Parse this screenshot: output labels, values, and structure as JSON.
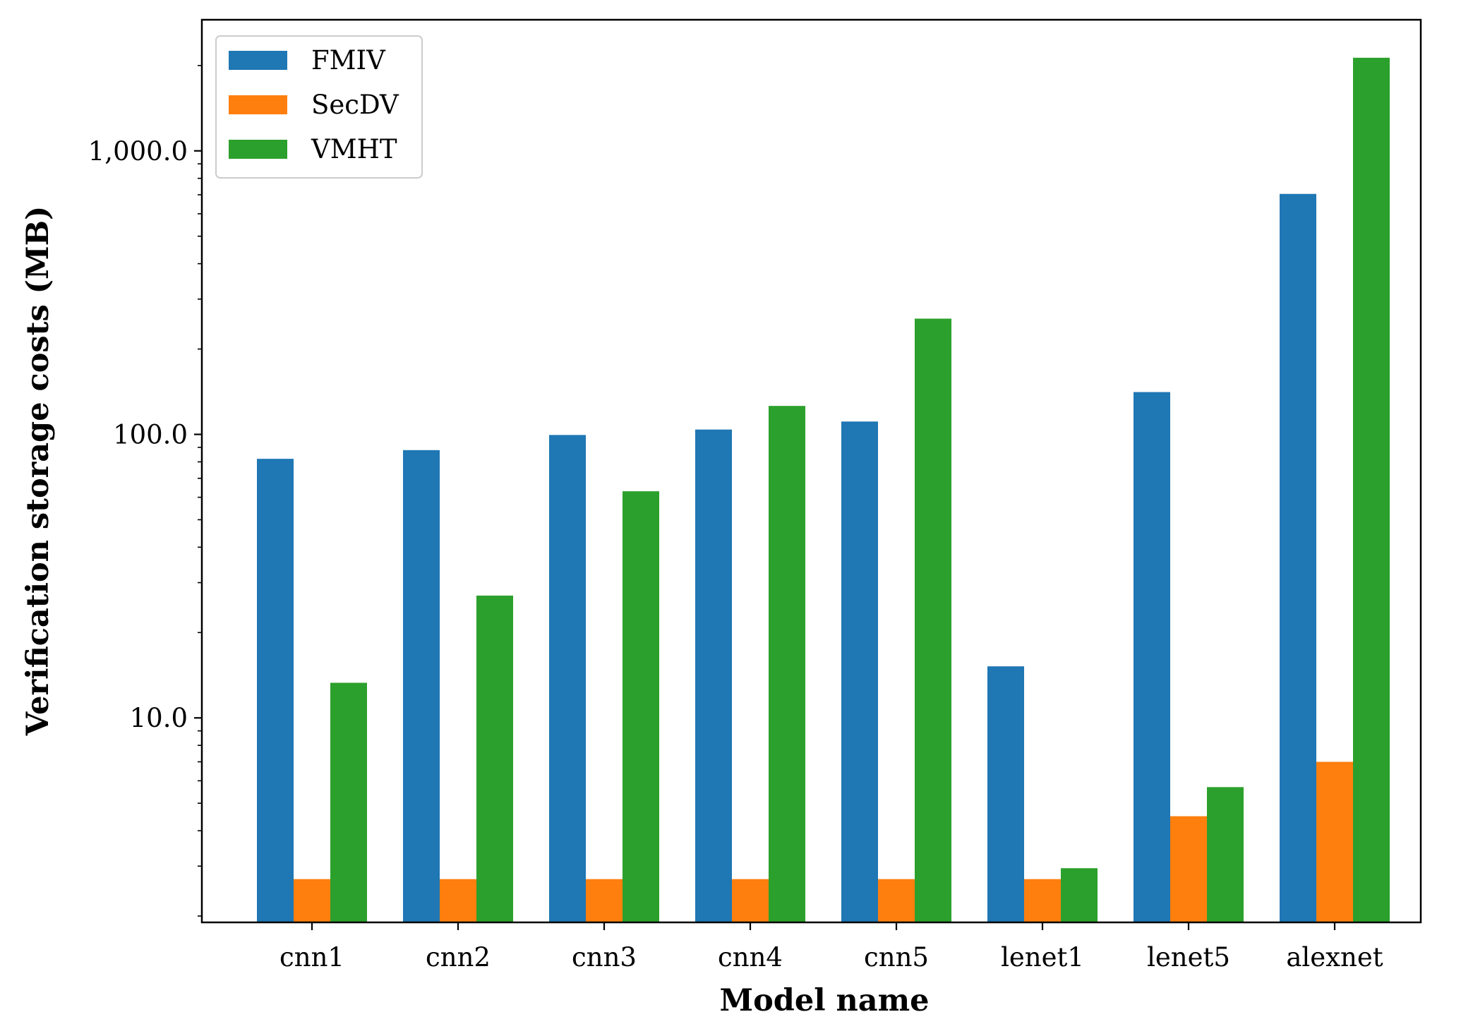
{
  "chart_data": {
    "type": "bar",
    "xlabel": "Model name",
    "ylabel": "Verification storage costs (MB)",
    "yscale": "log",
    "ylim": [
      1.9,
      2900
    ],
    "yticks": [
      10,
      100,
      1000
    ],
    "ytick_labels": [
      "10.0",
      "100.0",
      "1,000.0"
    ],
    "categories": [
      "cnn1",
      "cnn2",
      "cnn3",
      "cnn4",
      "cnn5",
      "lenet1",
      "lenet5",
      "alexnet"
    ],
    "series": [
      {
        "name": "FMIV",
        "color": "#1f77b4",
        "values": [
          82,
          88,
          99.5,
          104,
          111,
          15.2,
          141,
          705
        ]
      },
      {
        "name": "SecDV",
        "color": "#ff7f0e",
        "values": [
          2.7,
          2.7,
          2.7,
          2.7,
          2.7,
          2.7,
          4.5,
          7.0
        ]
      },
      {
        "name": "VMHT",
        "color": "#2ca02c",
        "values": [
          13.3,
          27,
          63,
          126,
          256,
          2.95,
          5.7,
          2130
        ]
      }
    ],
    "legend": {
      "position": "top-left"
    },
    "grid": false
  }
}
